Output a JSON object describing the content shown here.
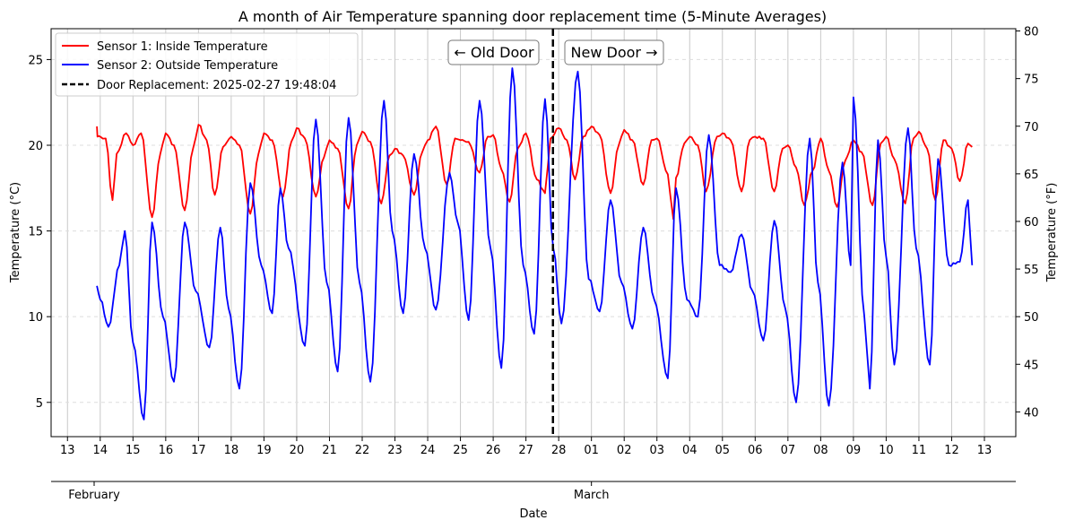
{
  "chart_data": {
    "type": "line",
    "title": "A month of Air Temperature spanning door replacement time (5-Minute Averages)",
    "xlabel": "Date",
    "ylabel": "Temperature (°C)",
    "ylabel_right": "Temperature (°F)",
    "ylim": [
      3.0,
      26.8
    ],
    "ylim_right": [
      37.4,
      80.24
    ],
    "yticks": [
      5,
      10,
      15,
      20,
      25
    ],
    "yticks_right": [
      40,
      45,
      50,
      55,
      60,
      65,
      70,
      75,
      80
    ],
    "xlim": [
      "2025-02-12T12:00",
      "2025-03-13T23:00"
    ],
    "x_tick_labels": [
      "13",
      "14",
      "15",
      "16",
      "17",
      "18",
      "19",
      "20",
      "21",
      "22",
      "23",
      "24",
      "25",
      "26",
      "27",
      "28",
      "01",
      "02",
      "03",
      "04",
      "05",
      "06",
      "07",
      "08",
      "09",
      "10",
      "11",
      "12",
      "13"
    ],
    "month_labels": [
      {
        "date": "2025-02-01",
        "label": "February"
      },
      {
        "date": "2025-03-01",
        "label": "March"
      }
    ],
    "grid": "vertical lines at each day; dashed horizontal lines",
    "legend_position": "top-left",
    "annotations": [
      {
        "text": "← Old Door"
      },
      {
        "text": "New Door →"
      }
    ],
    "door_replacement": {
      "date": "2025-02-27T19:48:04",
      "label": "Door Replacement: 2025-02-27 19:48:04",
      "color": "#000000"
    },
    "series": [
      {
        "name": "Sensor 1: Inside Temperature",
        "color": "#ff0000",
        "points": [
          [
            "2025-02-13T21:36",
            21.1
          ],
          [
            "2025-02-13T22:00",
            20.5
          ],
          [
            "2025-02-14T00:00",
            20.5
          ],
          [
            "2025-02-14T04:00",
            20.4
          ],
          [
            "2025-02-14T09:00",
            16.8
          ],
          [
            "2025-02-14T12:00",
            19.5
          ],
          [
            "2025-02-14T19:00",
            20.7
          ],
          [
            "2025-02-15T00:00",
            20.0
          ],
          [
            "2025-02-15T06:00",
            20.7
          ],
          [
            "2025-02-15T14:00",
            15.8
          ],
          [
            "2025-02-15T20:00",
            19.5
          ],
          [
            "2025-02-16T00:00",
            20.7
          ],
          [
            "2025-02-16T06:00",
            20.0
          ],
          [
            "2025-02-16T14:00",
            16.2
          ],
          [
            "2025-02-16T20:00",
            19.8
          ],
          [
            "2025-02-17T00:00",
            21.2
          ],
          [
            "2025-02-17T06:00",
            20.3
          ],
          [
            "2025-02-17T12:00",
            17.1
          ],
          [
            "2025-02-17T18:00",
            19.9
          ],
          [
            "2025-02-18T00:00",
            20.5
          ],
          [
            "2025-02-18T06:00",
            20.0
          ],
          [
            "2025-02-18T14:00",
            16.0
          ],
          [
            "2025-02-18T20:00",
            19.5
          ],
          [
            "2025-02-19T00:00",
            20.7
          ],
          [
            "2025-02-19T06:00",
            20.3
          ],
          [
            "2025-02-19T14:00",
            17.0
          ],
          [
            "2025-02-19T20:00",
            20.2
          ],
          [
            "2025-02-20T00:00",
            21.0
          ],
          [
            "2025-02-20T06:00",
            20.4
          ],
          [
            "2025-02-20T14:00",
            17.0
          ],
          [
            "2025-02-20T20:00",
            19.3
          ],
          [
            "2025-02-21T00:00",
            20.3
          ],
          [
            "2025-02-21T06:00",
            19.8
          ],
          [
            "2025-02-21T14:00",
            16.3
          ],
          [
            "2025-02-21T20:00",
            20.0
          ],
          [
            "2025-02-22T00:00",
            20.8
          ],
          [
            "2025-02-22T06:00",
            20.2
          ],
          [
            "2025-02-22T14:00",
            16.6
          ],
          [
            "2025-02-22T20:00",
            19.4
          ],
          [
            "2025-02-23T00:00",
            19.8
          ],
          [
            "2025-02-23T06:00",
            19.4
          ],
          [
            "2025-02-23T14:00",
            17.1
          ],
          [
            "2025-02-23T20:00",
            19.6
          ],
          [
            "2025-02-24T00:00",
            20.3
          ],
          [
            "2025-02-24T06:00",
            21.1
          ],
          [
            "2025-02-24T14:00",
            17.7
          ],
          [
            "2025-02-24T20:00",
            20.4
          ],
          [
            "2025-02-25T00:00",
            20.3
          ],
          [
            "2025-02-25T06:00",
            20.2
          ],
          [
            "2025-02-25T14:00",
            18.4
          ],
          [
            "2025-02-25T20:00",
            20.5
          ],
          [
            "2025-02-26T00:00",
            20.6
          ],
          [
            "2025-02-26T06:00",
            18.6
          ],
          [
            "2025-02-26T12:00",
            16.7
          ],
          [
            "2025-02-26T18:00",
            19.8
          ],
          [
            "2025-02-27T00:00",
            20.7
          ],
          [
            "2025-02-27T08:00",
            18.0
          ],
          [
            "2025-02-27T14:00",
            17.2
          ],
          [
            "2025-02-27T18:00",
            20.4
          ],
          [
            "2025-02-28T00:00",
            21.0
          ],
          [
            "2025-02-28T06:00",
            20.3
          ],
          [
            "2025-02-28T12:00",
            18.0
          ],
          [
            "2025-02-28T18:00",
            20.5
          ],
          [
            "2025-03-01T00:00",
            21.1
          ],
          [
            "2025-03-01T06:00",
            20.6
          ],
          [
            "2025-03-01T14:00",
            17.2
          ],
          [
            "2025-03-01T20:00",
            20.0
          ],
          [
            "2025-03-02T00:00",
            20.9
          ],
          [
            "2025-03-02T06:00",
            20.3
          ],
          [
            "2025-03-02T14:00",
            17.7
          ],
          [
            "2025-03-02T20:00",
            20.3
          ],
          [
            "2025-03-03T00:00",
            20.4
          ],
          [
            "2025-03-03T08:00",
            18.3
          ],
          [
            "2025-03-03T12:00",
            15.7
          ],
          [
            "2025-03-03T14:00",
            18.1
          ],
          [
            "2025-03-03T20:00",
            20.1
          ],
          [
            "2025-03-04T00:00",
            20.5
          ],
          [
            "2025-03-04T06:00",
            20.0
          ],
          [
            "2025-03-04T12:00",
            17.3
          ],
          [
            "2025-03-04T20:00",
            20.5
          ],
          [
            "2025-03-05T00:00",
            20.7
          ],
          [
            "2025-03-05T06:00",
            20.3
          ],
          [
            "2025-03-05T14:00",
            17.3
          ],
          [
            "2025-03-05T20:00",
            20.3
          ],
          [
            "2025-03-06T00:00",
            20.5
          ],
          [
            "2025-03-06T06:00",
            20.4
          ],
          [
            "2025-03-06T14:00",
            17.3
          ],
          [
            "2025-03-06T20:00",
            19.8
          ],
          [
            "2025-03-07T00:00",
            20.0
          ],
          [
            "2025-03-07T06:00",
            18.7
          ],
          [
            "2025-03-07T12:00",
            16.5
          ],
          [
            "2025-03-07T18:00",
            18.5
          ],
          [
            "2025-03-08T00:00",
            20.4
          ],
          [
            "2025-03-08T06:00",
            18.5
          ],
          [
            "2025-03-08T12:00",
            16.4
          ],
          [
            "2025-03-08T18:00",
            19.1
          ],
          [
            "2025-03-09T00:00",
            20.3
          ],
          [
            "2025-03-09T06:00",
            19.6
          ],
          [
            "2025-03-09T14:00",
            16.5
          ],
          [
            "2025-03-09T20:00",
            20.1
          ],
          [
            "2025-03-10T00:00",
            20.5
          ],
          [
            "2025-03-10T06:00",
            19.2
          ],
          [
            "2025-03-10T14:00",
            16.6
          ],
          [
            "2025-03-10T20:00",
            20.4
          ],
          [
            "2025-03-11T00:00",
            20.8
          ],
          [
            "2025-03-11T06:00",
            19.8
          ],
          [
            "2025-03-11T12:00",
            16.8
          ],
          [
            "2025-03-11T18:00",
            20.3
          ],
          [
            "2025-03-12T00:00",
            19.8
          ],
          [
            "2025-03-12T06:00",
            17.9
          ],
          [
            "2025-03-12T12:00",
            20.1
          ],
          [
            "2025-03-12T15:00",
            19.9
          ]
        ]
      },
      {
        "name": "Sensor 2: Outside Temperature",
        "color": "#0000ff",
        "points": [
          [
            "2025-02-13T21:36",
            11.8
          ],
          [
            "2025-02-14T00:00",
            11.0
          ],
          [
            "2025-02-14T06:00",
            9.4
          ],
          [
            "2025-02-14T14:00",
            13.0
          ],
          [
            "2025-02-14T18:00",
            15.0
          ],
          [
            "2025-02-15T00:00",
            8.5
          ],
          [
            "2025-02-15T08:00",
            4.0
          ],
          [
            "2025-02-15T14:00",
            15.5
          ],
          [
            "2025-02-15T22:00",
            10.0
          ],
          [
            "2025-02-16T06:00",
            6.2
          ],
          [
            "2025-02-16T14:00",
            15.5
          ],
          [
            "2025-02-16T22:00",
            11.5
          ],
          [
            "2025-02-17T08:00",
            8.2
          ],
          [
            "2025-02-17T16:00",
            15.2
          ],
          [
            "2025-02-17T22:00",
            10.5
          ],
          [
            "2025-02-18T06:00",
            5.8
          ],
          [
            "2025-02-18T14:00",
            17.8
          ],
          [
            "2025-02-18T22:00",
            13.0
          ],
          [
            "2025-02-19T06:00",
            10.2
          ],
          [
            "2025-02-19T12:00",
            17.5
          ],
          [
            "2025-02-19T18:00",
            14.0
          ],
          [
            "2025-02-20T06:00",
            8.3
          ],
          [
            "2025-02-20T14:00",
            21.5
          ],
          [
            "2025-02-20T22:00",
            12.0
          ],
          [
            "2025-02-21T06:00",
            6.8
          ],
          [
            "2025-02-21T14:00",
            21.6
          ],
          [
            "2025-02-21T22:00",
            12.0
          ],
          [
            "2025-02-22T06:00",
            6.2
          ],
          [
            "2025-02-22T16:00",
            22.6
          ],
          [
            "2025-02-22T22:00",
            15.0
          ],
          [
            "2025-02-23T06:00",
            10.2
          ],
          [
            "2025-02-23T14:00",
            19.5
          ],
          [
            "2025-02-23T22:00",
            14.0
          ],
          [
            "2025-02-24T06:00",
            10.4
          ],
          [
            "2025-02-24T16:00",
            18.4
          ],
          [
            "2025-02-24T22:00",
            15.5
          ],
          [
            "2025-02-25T06:00",
            9.8
          ],
          [
            "2025-02-25T14:00",
            22.6
          ],
          [
            "2025-02-25T22:00",
            14.0
          ],
          [
            "2025-02-26T06:00",
            7.0
          ],
          [
            "2025-02-26T14:00",
            24.5
          ],
          [
            "2025-02-26T22:00",
            13.0
          ],
          [
            "2025-02-27T06:00",
            9.0
          ],
          [
            "2025-02-27T14:00",
            22.7
          ],
          [
            "2025-02-27T20:00",
            14.0
          ],
          [
            "2025-02-28T02:00",
            9.6
          ],
          [
            "2025-02-28T14:00",
            24.3
          ],
          [
            "2025-02-28T22:00",
            12.2
          ],
          [
            "2025-03-01T06:00",
            10.3
          ],
          [
            "2025-03-01T14:00",
            16.8
          ],
          [
            "2025-03-01T22:00",
            12.0
          ],
          [
            "2025-03-02T06:00",
            9.3
          ],
          [
            "2025-03-02T14:00",
            15.2
          ],
          [
            "2025-03-02T22:00",
            11.0
          ],
          [
            "2025-03-03T08:00",
            6.4
          ],
          [
            "2025-03-03T14:00",
            17.5
          ],
          [
            "2025-03-03T22:00",
            11.0
          ],
          [
            "2025-03-04T06:00",
            10.0
          ],
          [
            "2025-03-04T14:00",
            20.6
          ],
          [
            "2025-03-04T22:00",
            13.0
          ],
          [
            "2025-03-05T06:00",
            12.6
          ],
          [
            "2025-03-05T14:00",
            14.8
          ],
          [
            "2025-03-05T22:00",
            11.5
          ],
          [
            "2025-03-06T06:00",
            8.6
          ],
          [
            "2025-03-06T14:00",
            15.6
          ],
          [
            "2025-03-06T22:00",
            10.5
          ],
          [
            "2025-03-07T06:00",
            5.0
          ],
          [
            "2025-03-07T16:00",
            20.4
          ],
          [
            "2025-03-07T22:00",
            12.0
          ],
          [
            "2025-03-08T06:00",
            4.8
          ],
          [
            "2025-03-08T16:00",
            19.0
          ],
          [
            "2025-03-08T22:00",
            13.0
          ],
          [
            "2025-03-09T00:00",
            22.8
          ],
          [
            "2025-03-09T08:00",
            10.0
          ],
          [
            "2025-03-09T12:00",
            5.8
          ],
          [
            "2025-03-09T18:00",
            20.3
          ],
          [
            "2025-03-10T00:00",
            13.5
          ],
          [
            "2025-03-10T06:00",
            7.2
          ],
          [
            "2025-03-10T16:00",
            21.0
          ],
          [
            "2025-03-10T22:00",
            14.0
          ],
          [
            "2025-03-11T08:00",
            7.2
          ],
          [
            "2025-03-11T14:00",
            19.2
          ],
          [
            "2025-03-11T22:00",
            13.0
          ],
          [
            "2025-03-12T06:00",
            13.2
          ],
          [
            "2025-03-12T12:00",
            16.8
          ],
          [
            "2025-03-12T15:00",
            13.0
          ]
        ]
      }
    ]
  }
}
